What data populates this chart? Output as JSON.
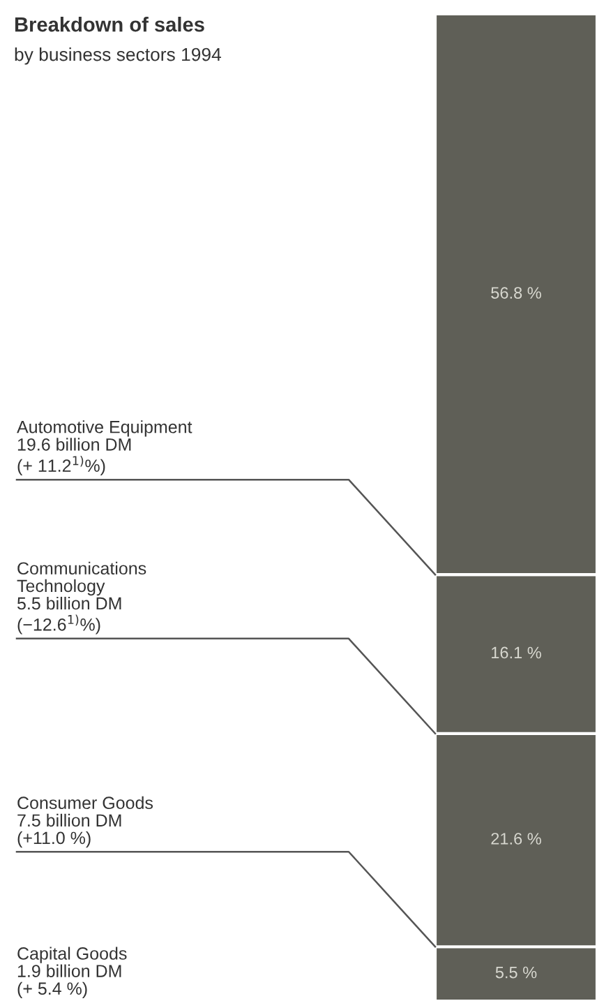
{
  "chart_data": {
    "type": "bar",
    "stacked": true,
    "title": "Breakdown of sales",
    "subtitle": "by business sectors 1994",
    "categories": [
      null
    ],
    "series": [
      {
        "color": "#5f5f57",
        "values": [
          5.5
        ],
        "value_labels": [
          "5.5 %"
        ]
      },
      {
        "color": "#5f5f57",
        "values": [
          21.6
        ],
        "value_labels": [
          "21.6 %"
        ]
      },
      {
        "color": "#5f5f57",
        "values": [
          16.1
        ],
        "value_labels": [
          "16.1 %"
        ]
      },
      {
        "color": "#5f5f57",
        "values": [
          56.8
        ],
        "value_labels": [
          "56.8 %"
        ]
      }
    ],
    "annotations": [
      "Capital Goods\n1.9 billion DM\n(+ 5.4 %)",
      "Consumer Goods\n7.5 billion DM\n(+11.0 %)",
      "Communications\nTechnology\n5.5 billion DM\n(−12.6$^{1)}$%)",
      "Automotive Equipment\n19.6 billion DM\n(+ 11.2$^{1)}$%)"
    ],
    "legend": false
  }
}
